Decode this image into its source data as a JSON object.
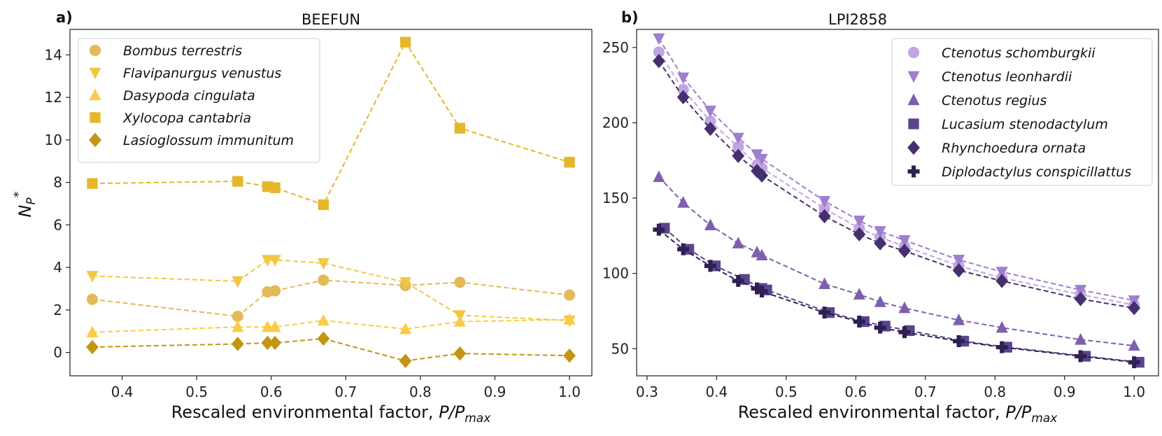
{
  "chart_data": [
    {
      "type": "line",
      "panel_label": "a)",
      "title": "BEEFUN",
      "xlabel_text": "Rescaled environmental factor, ",
      "xlabel_math": "P/P",
      "xlabel_sub": "max",
      "ylabel_main": "N",
      "ylabel_sub": "P",
      "ylabel_sup": "*",
      "xlim": [
        0.33,
        1.03
      ],
      "ylim": [
        -1.1,
        15.2
      ],
      "xticks": [
        0.4,
        0.5,
        0.6,
        0.7,
        0.8,
        0.9,
        1.0
      ],
      "xtick_labels": [
        "0.4",
        "0.5",
        "0.6",
        "0.7",
        "0.8",
        "0.9",
        "1.0"
      ],
      "yticks": [
        0,
        2,
        4,
        6,
        8,
        10,
        12,
        14
      ],
      "ytick_labels": [
        "0",
        "2",
        "4",
        "6",
        "8",
        "10",
        "12",
        "14"
      ],
      "legend_position": "upper-left",
      "series": [
        {
          "name": "Bombus terrestris",
          "marker": "circle",
          "color": "#e3ba57",
          "x": [
            0.36,
            0.555,
            0.595,
            0.605,
            0.67,
            0.78,
            0.853,
            1.0
          ],
          "y": [
            2.5,
            1.7,
            2.85,
            2.9,
            3.4,
            3.15,
            3.3,
            2.7
          ]
        },
        {
          "name": "Flavipanurgus venustus",
          "marker": "triangle-down",
          "color": "#f4c742",
          "x": [
            0.36,
            0.555,
            0.595,
            0.605,
            0.67,
            0.78,
            0.853,
            1.0
          ],
          "y": [
            3.6,
            3.35,
            4.35,
            4.35,
            4.2,
            3.3,
            1.75,
            1.5
          ]
        },
        {
          "name": "Dasypoda cingulata",
          "marker": "triangle-up",
          "color": "#f9cc45",
          "x": [
            0.36,
            0.555,
            0.595,
            0.605,
            0.67,
            0.78,
            0.853,
            1.0
          ],
          "y": [
            0.95,
            1.2,
            1.2,
            1.2,
            1.5,
            1.1,
            1.45,
            1.55
          ]
        },
        {
          "name": "Xylocopa cantabria",
          "marker": "square",
          "color": "#e6b62b",
          "x": [
            0.36,
            0.555,
            0.595,
            0.605,
            0.67,
            0.78,
            0.853,
            1.0
          ],
          "y": [
            7.95,
            8.05,
            7.8,
            7.75,
            6.95,
            14.6,
            10.55,
            8.95
          ]
        },
        {
          "name": "Lasioglossum immunitum",
          "marker": "diamond",
          "color": "#c39512",
          "x": [
            0.36,
            0.555,
            0.595,
            0.605,
            0.67,
            0.78,
            0.853,
            1.0
          ],
          "y": [
            0.25,
            0.4,
            0.45,
            0.45,
            0.65,
            -0.4,
            -0.05,
            -0.15
          ]
        }
      ]
    },
    {
      "type": "line",
      "panel_label": "b)",
      "title": "LPI2858",
      "xlabel_text": "Rescaled environmental factor, ",
      "xlabel_math": "P/P",
      "xlabel_sub": "max",
      "xlim": [
        0.285,
        1.035
      ],
      "ylim": [
        32,
        262
      ],
      "xticks": [
        0.3,
        0.4,
        0.5,
        0.6,
        0.7,
        0.8,
        0.9,
        1.0
      ],
      "xtick_labels": [
        "0.3",
        "0.4",
        "0.5",
        "0.6",
        "0.7",
        "0.8",
        "0.9",
        "1.0"
      ],
      "yticks": [
        50,
        100,
        150,
        200,
        250
      ],
      "ytick_labels": [
        "50",
        "100",
        "150",
        "200",
        "250"
      ],
      "legend_position": "upper-right",
      "series": [
        {
          "name": "Ctenotus schomburgkii",
          "marker": "circle",
          "color": "#c2a5e3",
          "x": [
            0.317,
            0.352,
            0.391,
            0.431,
            0.458,
            0.465,
            0.555,
            0.605,
            0.635,
            0.67,
            0.748,
            0.81,
            0.923,
            1.0
          ],
          "y": [
            247,
            222,
            201,
            184,
            172,
            170,
            143,
            130,
            124,
            118,
            105,
            97,
            86,
            79
          ]
        },
        {
          "name": "Ctenotus leonhardii",
          "marker": "triangle-down",
          "color": "#9d7ed0",
          "x": [
            0.317,
            0.352,
            0.391,
            0.431,
            0.458,
            0.465,
            0.555,
            0.605,
            0.635,
            0.67,
            0.748,
            0.81,
            0.923,
            1.0
          ],
          "y": [
            256,
            230,
            208,
            190,
            179,
            176,
            148,
            135,
            128,
            122,
            109,
            101,
            89,
            82
          ]
        },
        {
          "name": "Ctenotus regius",
          "marker": "triangle-up",
          "color": "#7d5fae",
          "x": [
            0.317,
            0.352,
            0.391,
            0.431,
            0.458,
            0.465,
            0.555,
            0.605,
            0.635,
            0.67,
            0.748,
            0.81,
            0.923,
            1.0
          ],
          "y": [
            164,
            147,
            132,
            120,
            114,
            112,
            93,
            86,
            81,
            77,
            69,
            64,
            56,
            52
          ]
        },
        {
          "name": "Lucasium stenodactylum",
          "marker": "square",
          "color": "#5b4490",
          "x": [
            0.325,
            0.36,
            0.398,
            0.44,
            0.465,
            0.472,
            0.562,
            0.612,
            0.642,
            0.677,
            0.755,
            0.817,
            0.93,
            1.007
          ],
          "y": [
            130,
            116,
            105,
            96,
            90,
            89,
            74,
            68,
            65,
            62,
            55,
            51,
            45,
            41
          ]
        },
        {
          "name": "Rhynchoedura ornata",
          "marker": "diamond",
          "color": "#44306e",
          "x": [
            0.317,
            0.352,
            0.391,
            0.431,
            0.458,
            0.465,
            0.555,
            0.605,
            0.635,
            0.67,
            0.748,
            0.81,
            0.923,
            1.0
          ],
          "y": [
            241,
            217,
            196,
            178,
            168,
            165,
            138,
            126,
            120,
            115,
            102,
            95,
            83,
            77
          ]
        },
        {
          "name": "Diplodactylus conspicillattus",
          "marker": "plus",
          "color": "#2f1f52",
          "x": [
            0.317,
            0.352,
            0.391,
            0.431,
            0.458,
            0.465,
            0.555,
            0.605,
            0.635,
            0.67,
            0.748,
            0.81,
            0.923,
            1.0
          ],
          "y": [
            129,
            116,
            105,
            95,
            90,
            88,
            74,
            68,
            64,
            61,
            55,
            51,
            45,
            41
          ]
        }
      ]
    }
  ]
}
